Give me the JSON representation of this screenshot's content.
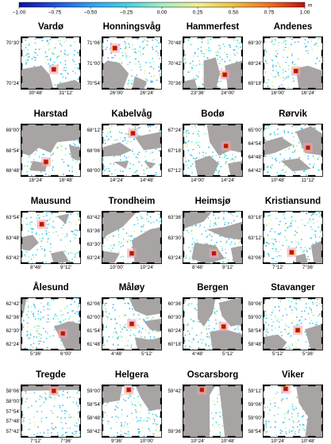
{
  "colorbar": {
    "ticks": [
      "−1.00",
      "−0.75",
      "−0.50",
      "−0.25",
      "0.00",
      "0.25",
      "0.50",
      "0.75",
      "1.00"
    ],
    "unit": "m",
    "colors": [
      "#1010a0",
      "#2050e0",
      "#30a0f0",
      "#40d0e8",
      "#a0f0c0",
      "#f0f090",
      "#f0c040",
      "#f07020",
      "#c01010"
    ]
  },
  "panels": [
    {
      "name": "Vardø",
      "y_ticks": [
        "70°30'",
        "70°24'"
      ],
      "x_ticks": [
        "30°48'",
        "31°12'"
      ]
    },
    {
      "name": "Honningsvåg",
      "y_ticks": [
        "71°06'",
        "71°00'",
        "70°54'"
      ],
      "x_ticks": [
        "26°00'",
        "26°24'"
      ]
    },
    {
      "name": "Hammerfest",
      "y_ticks": [
        "70°48'",
        "70°42'",
        "70°36'"
      ],
      "x_ticks": [
        "23°36'",
        "24°00'"
      ]
    },
    {
      "name": "Andenes",
      "y_ticks": [
        "69°30'",
        "69°24'",
        "69°18'"
      ],
      "x_ticks": [
        "16°00'",
        "16°24'"
      ]
    },
    {
      "name": "Harstad",
      "y_ticks": [
        "69°00'",
        "68°54'",
        "68°48'"
      ],
      "x_ticks": [
        "16°24'",
        "16°48'"
      ]
    },
    {
      "name": "Kabelvåg",
      "y_ticks": [
        "68°12'",
        "68°06'",
        "68°00'"
      ],
      "x_ticks": [
        "14°24'",
        "14°48'"
      ]
    },
    {
      "name": "Bodø",
      "y_ticks": [
        "67°24'",
        "67°18'",
        "67°12'"
      ],
      "x_ticks": [
        "14°00'",
        "14°24'"
      ]
    },
    {
      "name": "Rørvik",
      "y_ticks": [
        "65°00'",
        "64°54'",
        "64°48'",
        "64°42'"
      ],
      "x_ticks": [
        "10°48'",
        "11°12'"
      ]
    },
    {
      "name": "Mausund",
      "y_ticks": [
        "63°54'",
        "63°48'",
        "63°42'"
      ],
      "x_ticks": [
        "8°48'",
        "9°12'"
      ]
    },
    {
      "name": "Trondheim",
      "y_ticks": [
        "63°42'",
        "63°36'",
        "63°30'",
        "63°24'"
      ],
      "x_ticks": [
        "10°00'",
        "10°24'"
      ]
    },
    {
      "name": "Heimsjø",
      "y_ticks": [
        "63°36'",
        "63°30'",
        "63°24'"
      ],
      "x_ticks": [
        "8°48'",
        "9°12'"
      ]
    },
    {
      "name": "Kristiansund",
      "y_ticks": [
        "63°18'",
        "63°12'",
        "63°06'"
      ],
      "x_ticks": [
        "7°12'",
        "7°36'"
      ]
    },
    {
      "name": "Ålesund",
      "y_ticks": [
        "62°42'",
        "62°36'",
        "62°30'",
        "62°24'"
      ],
      "x_ticks": [
        "5°36'",
        "6°00'"
      ]
    },
    {
      "name": "Måløy",
      "y_ticks": [
        "62°06'",
        "62°00'",
        "61°54'",
        "61°48'"
      ],
      "x_ticks": [
        "4°48'",
        "5°12'"
      ]
    },
    {
      "name": "Bergen",
      "y_ticks": [
        "60°36'",
        "60°30'",
        "60°24'",
        "60°18'"
      ],
      "x_ticks": [
        "4°48'",
        "5°12'"
      ]
    },
    {
      "name": "Stavanger",
      "y_ticks": [
        "59°06'",
        "59°00'",
        "58°54'",
        "58°48'"
      ],
      "x_ticks": [
        "5°12'",
        "5°36'"
      ]
    },
    {
      "name": "Tregde",
      "y_ticks": [
        "58°06'",
        "58°00'",
        "57°54'",
        "57°48'",
        "57°42'"
      ],
      "x_ticks": [
        "7°12'",
        "7°36'"
      ]
    },
    {
      "name": "Helgera",
      "y_ticks": [
        "59°00'",
        "58°54'",
        "58°48'",
        "58°42'"
      ],
      "x_ticks": [
        "9°36'",
        "10°00'"
      ]
    },
    {
      "name": "Oscarsborg",
      "y_ticks": [
        "59°42'",
        "59°36'"
      ],
      "x_ticks": [
        "10°24'",
        "10°48'"
      ]
    },
    {
      "name": "Viker",
      "y_ticks": [
        "59°12'",
        "59°06'",
        "59°00'",
        "58°54'"
      ],
      "x_ticks": [
        "10°24'",
        "10°48'"
      ]
    }
  ],
  "colors": {
    "land": "#a8a4a4",
    "station": "#b01818",
    "station_outline": "#ffa020",
    "highlight": "#f0a0c8",
    "frame": "#000000"
  }
}
